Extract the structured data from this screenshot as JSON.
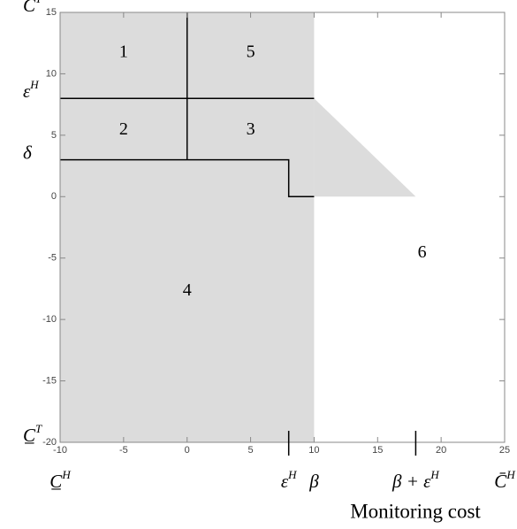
{
  "chart_data": {
    "type": "region",
    "x_label": "Monitoring cost",
    "xlim": [
      -10,
      25
    ],
    "ylim": [
      -20,
      15
    ],
    "xticks": [
      -10,
      -5,
      0,
      5,
      10,
      15,
      20,
      25
    ],
    "yticks": [
      -20,
      -15,
      -10,
      -5,
      0,
      5,
      10,
      15
    ],
    "shade_color": "#dcdcdc",
    "shaded": [
      {
        "x": [
          -10,
          10,
          10,
          -10
        ],
        "y": [
          -20,
          -20,
          15,
          15
        ]
      },
      {
        "x": [
          10,
          18,
          10
        ],
        "y": [
          8,
          0,
          0
        ]
      }
    ],
    "boundaries": [
      {
        "x": [
          0,
          0
        ],
        "y": [
          3,
          15
        ]
      },
      {
        "x": [
          -10,
          10
        ],
        "y": [
          8,
          8
        ]
      },
      {
        "x": [
          -10,
          8,
          8,
          10
        ],
        "y": [
          3,
          3,
          0,
          0
        ]
      }
    ],
    "regions": [
      {
        "label": "1",
        "x": -5,
        "y": 11.7
      },
      {
        "label": "5",
        "x": 5,
        "y": 11.7
      },
      {
        "label": "2",
        "x": -5,
        "y": 5.4
      },
      {
        "label": "3",
        "x": 5,
        "y": 5.4
      },
      {
        "label": "4",
        "x": 0,
        "y": -7.7
      },
      {
        "label": "6",
        "x": 18.5,
        "y": -4.6
      }
    ],
    "y_annotations": [
      {
        "text": "C̄",
        "sup": "T",
        "value": 15
      },
      {
        "text": "ε",
        "sup": "H",
        "value": 8
      },
      {
        "text": "δ",
        "value": 3
      },
      {
        "text": "C̲",
        "sup": "T",
        "value": -20
      }
    ],
    "x_annotations": [
      {
        "text": "C̲",
        "sup": "H",
        "value": -10
      },
      {
        "text": "ε",
        "sup": "H",
        "value": 8,
        "tick": true
      },
      {
        "text": "β",
        "value": 10
      },
      {
        "text": "β + ε",
        "sup": "H",
        "value": 18,
        "tick": true
      },
      {
        "text": "C̄",
        "sup": "H",
        "value": 25
      }
    ]
  }
}
